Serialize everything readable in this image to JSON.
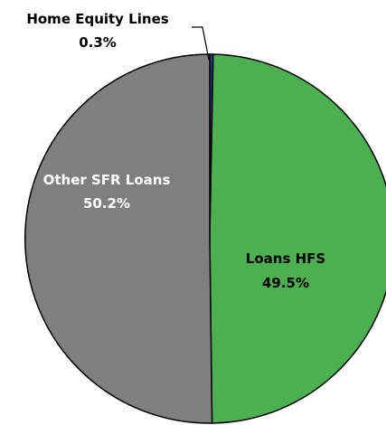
{
  "chart_data": {
    "type": "pie",
    "slices": [
      {
        "label": "Home Equity Lines",
        "value": 0.3,
        "value_text": "0.3%",
        "color": "#1f3a8a"
      },
      {
        "label": "Loans HFS",
        "value": 49.5,
        "value_text": "49.5%",
        "color": "#4caf50"
      },
      {
        "label": "Other SFR Loans",
        "value": 50.2,
        "value_text": "50.2%",
        "color": "#7f7f7f"
      }
    ],
    "start": "top",
    "direction": "clockwise",
    "slice_border_color": "#000000"
  }
}
